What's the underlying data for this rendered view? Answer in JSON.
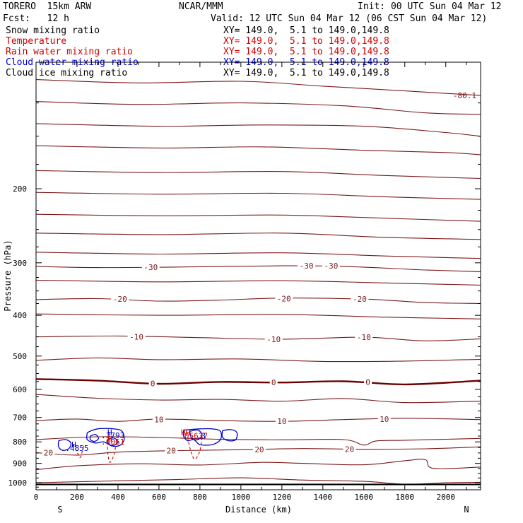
{
  "header": {
    "model": "TORERO  15km ARW",
    "forecast": "Fcst:   12 h",
    "center": "NCAR/MMM",
    "init": "Init: 00 UTC Sun 04 Mar 12",
    "valid": "Valid: 12 UTC Sun 04 Mar 12 (06 CST Sun 04 Mar 12)"
  },
  "fields": [
    {
      "name": "Snow mixing ratio",
      "xsect": "XY= 149.0,  5.1 to 149.0,149.8",
      "color": "#000000"
    },
    {
      "name": "Temperature",
      "xsect": "XY= 149.0,  5.1 to 149.0,149.8",
      "color": "#cc0000"
    },
    {
      "name": "Rain water mixing ratio",
      "xsect": "XY= 149.0,  5.1 to 149.0,149.8",
      "color": "#cc0000"
    },
    {
      "name": "Cloud water mixing ratio",
      "xsect": "XY= 149.0,  5.1 to 149.0,149.8",
      "color": "#0000cc"
    },
    {
      "name": "Cloud ice mixing ratio",
      "xsect": "XY= 149.0,  5.1 to 149.0,149.8",
      "color": "#000000"
    }
  ],
  "chart_data": {
    "type": "contour",
    "xlabel": "Distance (km)",
    "ylabel": "Pressure (hPa)",
    "xlim": [
      0,
      2170
    ],
    "ylim": [
      1040,
      100
    ],
    "y_scale": "log",
    "x_ticks": [
      0,
      200,
      400,
      600,
      800,
      1000,
      1200,
      1400,
      1600,
      1800,
      2000
    ],
    "y_ticks": [
      200,
      300,
      400,
      500,
      600,
      700,
      800,
      900,
      1000
    ],
    "endpoint_labels": {
      "left": "S",
      "right": "N"
    },
    "temperature_color": "#7a1a1a",
    "zero_isotherm_color": "#6a0000",
    "cloud_water_color": "#0000cc",
    "rain_water_color": "#cc0000",
    "surface_pressure": 1010,
    "temperature_isotherms": [
      {
        "value": -80,
        "label": "-80.1",
        "points": [
          [
            0,
            110
          ],
          [
            500,
            112
          ],
          [
            1000,
            111
          ],
          [
            1400,
            114
          ],
          [
            1800,
            117
          ],
          [
            2170,
            120
          ]
        ]
      },
      {
        "value": -70,
        "points": [
          [
            0,
            124
          ],
          [
            500,
            126
          ],
          [
            1000,
            125
          ],
          [
            1500,
            127
          ],
          [
            1900,
            132
          ],
          [
            2170,
            133
          ]
        ]
      },
      {
        "value": -65,
        "points": [
          [
            0,
            140
          ],
          [
            600,
            142
          ],
          [
            1100,
            141
          ],
          [
            1600,
            142
          ],
          [
            2000,
            147
          ],
          [
            2170,
            150
          ]
        ]
      },
      {
        "value": -60,
        "points": [
          [
            0,
            158
          ],
          [
            600,
            160
          ],
          [
            1100,
            159
          ],
          [
            1600,
            162
          ],
          [
            2000,
            164
          ],
          [
            2170,
            166
          ]
        ]
      },
      {
        "value": -55,
        "points": [
          [
            0,
            181
          ],
          [
            600,
            183
          ],
          [
            1200,
            182
          ],
          [
            1700,
            186
          ],
          [
            2170,
            189
          ]
        ]
      },
      {
        "value": -50,
        "points": [
          [
            0,
            204
          ],
          [
            600,
            206
          ],
          [
            1200,
            205
          ],
          [
            1700,
            209
          ],
          [
            2170,
            212
          ]
        ]
      },
      {
        "value": -45,
        "points": [
          [
            0,
            230
          ],
          [
            600,
            232
          ],
          [
            1200,
            231
          ],
          [
            1700,
            235
          ],
          [
            2170,
            239
          ]
        ]
      },
      {
        "value": -40,
        "points": [
          [
            0,
            255
          ],
          [
            600,
            257
          ],
          [
            1200,
            255
          ],
          [
            1700,
            261
          ],
          [
            2170,
            264
          ]
        ]
      },
      {
        "value": -35,
        "points": [
          [
            0,
            283
          ],
          [
            600,
            286
          ],
          [
            1200,
            284
          ],
          [
            1700,
            289
          ],
          [
            2170,
            293
          ]
        ]
      },
      {
        "value": -30,
        "points": [
          [
            0,
            306
          ],
          [
            300,
            308
          ],
          [
            700,
            307
          ],
          [
            1200,
            305
          ],
          [
            1500,
            306
          ],
          [
            1900,
            312
          ],
          [
            2170,
            315
          ]
        ]
      },
      {
        "value": -25,
        "points": [
          [
            0,
            330
          ],
          [
            600,
            333
          ],
          [
            1200,
            331
          ],
          [
            1700,
            335
          ],
          [
            2170,
            339
          ]
        ]
      },
      {
        "value": -20,
        "points": [
          [
            0,
            367
          ],
          [
            300,
            365
          ],
          [
            600,
            370
          ],
          [
            900,
            368
          ],
          [
            1200,
            364
          ],
          [
            1600,
            366
          ],
          [
            1900,
            373
          ],
          [
            2170,
            375
          ]
        ]
      },
      {
        "value": -15,
        "points": [
          [
            0,
            397
          ],
          [
            600,
            400
          ],
          [
            1200,
            398
          ],
          [
            1700,
            404
          ],
          [
            2170,
            408
          ]
        ]
      },
      {
        "value": -10,
        "points": [
          [
            0,
            450
          ],
          [
            400,
            448
          ],
          [
            800,
            452
          ],
          [
            1200,
            456
          ],
          [
            1600,
            451
          ],
          [
            1900,
            460
          ],
          [
            2170,
            455
          ]
        ]
      },
      {
        "value": -5,
        "points": [
          [
            0,
            512
          ],
          [
            300,
            505
          ],
          [
            600,
            510
          ],
          [
            1000,
            508
          ],
          [
            1400,
            515
          ],
          [
            1800,
            514
          ],
          [
            2170,
            509
          ]
        ]
      },
      {
        "value": 0,
        "points": [
          [
            0,
            567
          ],
          [
            300,
            572
          ],
          [
            600,
            582
          ],
          [
            900,
            576
          ],
          [
            1200,
            578
          ],
          [
            1500,
            574
          ],
          [
            1800,
            584
          ],
          [
            2170,
            572
          ]
        ]
      },
      {
        "value": 5,
        "points": [
          [
            0,
            617
          ],
          [
            300,
            630
          ],
          [
            600,
            636
          ],
          [
            900,
            634
          ],
          [
            1200,
            640
          ],
          [
            1500,
            631
          ],
          [
            1800,
            645
          ],
          [
            2170,
            640
          ]
        ]
      },
      {
        "value": 10,
        "points": [
          [
            0,
            712
          ],
          [
            200,
            706
          ],
          [
            400,
            715
          ],
          [
            600,
            706
          ],
          [
            900,
            712
          ],
          [
            1200,
            715
          ],
          [
            1500,
            708
          ],
          [
            1800,
            703
          ],
          [
            2170,
            708
          ]
        ]
      },
      {
        "value": 15,
        "points": [
          [
            0,
            790
          ],
          [
            300,
            778
          ],
          [
            600,
            781
          ],
          [
            900,
            789
          ],
          [
            1200,
            791
          ],
          [
            1500,
            790
          ],
          [
            1600,
            814
          ],
          [
            1660,
            796
          ],
          [
            1800,
            793
          ],
          [
            2170,
            785
          ]
        ]
      },
      {
        "value": 20,
        "points": [
          [
            0,
            849
          ],
          [
            200,
            860
          ],
          [
            400,
            846
          ],
          [
            700,
            839
          ],
          [
            1000,
            835
          ],
          [
            1300,
            830
          ],
          [
            1600,
            833
          ],
          [
            1900,
            831
          ],
          [
            2170,
            822
          ]
        ]
      },
      {
        "value": 25,
        "points": [
          [
            0,
            932
          ],
          [
            200,
            912
          ],
          [
            500,
            902
          ],
          [
            800,
            908
          ],
          [
            1100,
            895
          ],
          [
            1300,
            900
          ],
          [
            1600,
            907
          ],
          [
            1800,
            887
          ],
          [
            1900,
            882
          ],
          [
            1940,
            925
          ],
          [
            2170,
            918
          ]
        ]
      },
      {
        "value": 30,
        "points": [
          [
            0,
            1001
          ],
          [
            400,
            990
          ],
          [
            700,
            983
          ],
          [
            1000,
            974
          ],
          [
            1300,
            986
          ],
          [
            1600,
            993
          ],
          [
            1800,
            1009
          ],
          [
            2000,
            1001
          ],
          [
            2170,
            998
          ]
        ]
      }
    ],
    "isotherm_labels": [
      {
        "text": "-30",
        "x": 560,
        "p": 307
      },
      {
        "text": "-30",
        "x": 1320,
        "p": 305
      },
      {
        "text": "-30",
        "x": 1440,
        "p": 305
      },
      {
        "text": "-20",
        "x": 410,
        "p": 366
      },
      {
        "text": "-20",
        "x": 1210,
        "p": 365
      },
      {
        "text": "-20",
        "x": 1580,
        "p": 366
      },
      {
        "text": "-10",
        "x": 490,
        "p": 450
      },
      {
        "text": "-10",
        "x": 1160,
        "p": 456
      },
      {
        "text": "-10",
        "x": 1600,
        "p": 451
      },
      {
        "text": "0",
        "x": 570,
        "p": 581
      },
      {
        "text": "0",
        "x": 1160,
        "p": 578
      },
      {
        "text": "0",
        "x": 1620,
        "p": 576
      },
      {
        "text": "10",
        "x": 600,
        "p": 707
      },
      {
        "text": "10",
        "x": 1200,
        "p": 715
      },
      {
        "text": "10",
        "x": 1700,
        "p": 706
      },
      {
        "text": "20",
        "x": 660,
        "p": 839
      },
      {
        "text": "20",
        "x": 1090,
        "p": 834
      },
      {
        "text": "20",
        "x": 1530,
        "p": 833
      },
      {
        "text": "20",
        "x": 60,
        "p": 848
      }
    ],
    "cloud_water_contours": [
      {
        "points": [
          [
            110,
            795
          ],
          [
            145,
            790
          ],
          [
            170,
            805
          ],
          [
            160,
            830
          ],
          [
            130,
            838
          ],
          [
            110,
            822
          ],
          [
            110,
            795
          ]
        ]
      },
      {
        "points": [
          [
            250,
            760
          ],
          [
            300,
            745
          ],
          [
            380,
            745
          ],
          [
            420,
            755
          ],
          [
            430,
            790
          ],
          [
            410,
            815
          ],
          [
            370,
            818
          ],
          [
            330,
            800
          ],
          [
            290,
            805
          ],
          [
            250,
            790
          ],
          [
            250,
            760
          ]
        ]
      },
      {
        "points": [
          [
            265,
            775
          ],
          [
            290,
            768
          ],
          [
            305,
            785
          ],
          [
            285,
            798
          ],
          [
            265,
            790
          ],
          [
            265,
            775
          ]
        ]
      },
      {
        "points": [
          [
            350,
            790
          ],
          [
            380,
            783
          ],
          [
            400,
            800
          ],
          [
            380,
            815
          ],
          [
            355,
            810
          ],
          [
            350,
            790
          ]
        ]
      },
      {
        "points": [
          [
            720,
            750
          ],
          [
            800,
            745
          ],
          [
            860,
            745
          ],
          [
            900,
            755
          ],
          [
            900,
            790
          ],
          [
            860,
            812
          ],
          [
            800,
            812
          ],
          [
            770,
            790
          ],
          [
            740,
            795
          ],
          [
            720,
            775
          ],
          [
            720,
            750
          ]
        ]
      },
      {
        "points": [
          [
            750,
            755
          ],
          [
            790,
            750
          ],
          [
            810,
            770
          ],
          [
            790,
            790
          ],
          [
            760,
            785
          ],
          [
            750,
            755
          ]
        ]
      },
      {
        "points": [
          [
            910,
            752
          ],
          [
            950,
            748
          ],
          [
            980,
            760
          ],
          [
            975,
            790
          ],
          [
            940,
            795
          ],
          [
            910,
            780
          ],
          [
            910,
            752
          ]
        ]
      }
    ],
    "rain_water_contours": [
      {
        "points": [
          [
            180,
            810
          ],
          [
            200,
            845
          ],
          [
            215,
            872
          ],
          [
            225,
            845
          ],
          [
            235,
            812
          ]
        ]
      },
      {
        "points": [
          [
            350,
            800
          ],
          [
            350,
            845
          ],
          [
            360,
            895
          ],
          [
            380,
            860
          ],
          [
            390,
            810
          ]
        ]
      },
      {
        "points": [
          [
            740,
            780
          ],
          [
            755,
            840
          ],
          [
            775,
            880
          ],
          [
            800,
            840
          ],
          [
            810,
            780
          ]
        ]
      }
    ],
    "extrema": [
      {
        "text": "H",
        "x": 185,
        "p": 812,
        "color": "#0000cc"
      },
      {
        "text": ".4855",
        "x": 200,
        "p": 828,
        "color": "#0000cc"
      },
      {
        "text": "H",
        "x": 360,
        "p": 758,
        "color": "#0000cc"
      },
      {
        "text": ".3793",
        "x": 375,
        "p": 772,
        "color": "#0000cc"
      },
      {
        "text": "H",
        "x": 360,
        "p": 786,
        "color": "#cc0000"
      },
      {
        "text": ".0061",
        "x": 375,
        "p": 800,
        "color": "#cc0000"
      },
      {
        "text": "HH",
        "x": 730,
        "p": 758,
        "color": "#cc0000"
      },
      {
        "text": ".05637",
        "x": 770,
        "p": 773,
        "color": "#cc0000"
      },
      {
        "text": ".3",
        "x": 805,
        "p": 773,
        "color": "#0000cc"
      }
    ]
  }
}
